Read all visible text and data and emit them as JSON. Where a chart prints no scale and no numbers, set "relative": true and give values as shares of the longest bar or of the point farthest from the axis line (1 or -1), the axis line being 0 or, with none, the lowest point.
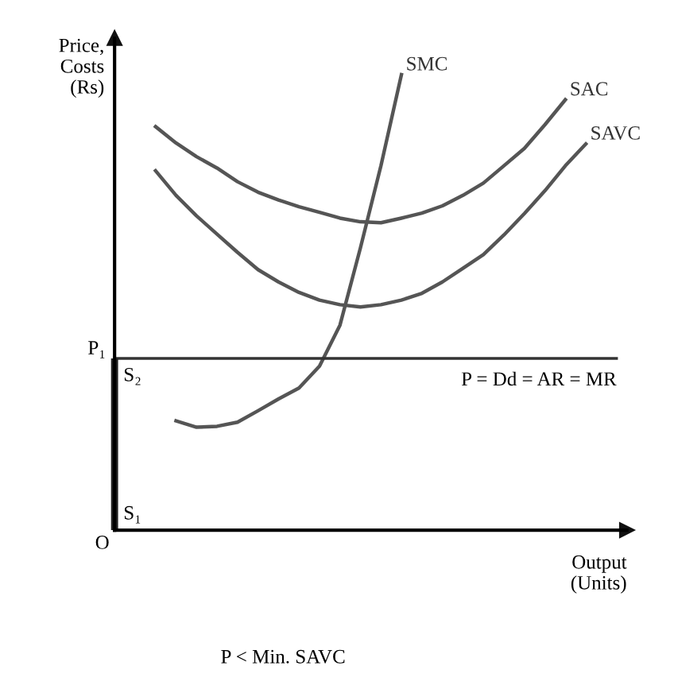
{
  "chart_data": {
    "type": "line",
    "relative": true,
    "tick_labels": false,
    "marker": "none",
    "ylabel": "Price,\nCosts\n(Rs)",
    "xlabel": "Output\n(Units)",
    "categories": [
      null,
      null,
      null,
      null,
      null,
      null,
      null,
      null,
      null,
      null,
      null,
      null,
      null,
      null,
      null,
      null,
      null,
      null,
      null,
      null,
      null,
      null,
      null,
      null,
      null
    ],
    "series": [
      {
        "name": "SAC",
        "color": "#555555",
        "values": [
          null,
          null,
          0.886,
          0.85,
          0.82,
          0.795,
          0.765,
          0.742,
          0.725,
          0.71,
          0.698,
          0.685,
          0.677,
          0.675,
          0.685,
          0.696,
          0.712,
          0.735,
          0.762,
          0.8,
          0.838,
          0.89,
          0.945,
          null,
          null
        ]
      },
      {
        "name": "SAVC",
        "color": "#555555",
        "values": [
          null,
          null,
          0.789,
          0.735,
          0.69,
          0.65,
          0.61,
          0.572,
          0.545,
          0.522,
          0.505,
          0.495,
          0.49,
          0.495,
          0.505,
          0.52,
          0.545,
          0.575,
          0.605,
          0.648,
          0.695,
          0.745,
          0.8,
          0.848,
          null
        ]
      },
      {
        "name": "SMC",
        "color": "#555555",
        "values": [
          null,
          null,
          null,
          0.24,
          0.226,
          0.228,
          0.237,
          0.262,
          0.288,
          0.312,
          0.36,
          0.45,
          0.62,
          0.8,
          1.0,
          null,
          null,
          null,
          null,
          null,
          null,
          null,
          null,
          null,
          null
        ]
      }
    ],
    "ref_lines": [
      {
        "axis": "y",
        "value": 0.377,
        "label": "P = Dd = AR = MR",
        "color": "#333333"
      }
    ],
    "annotations": [
      "P₁",
      {
        "text": "S₂",
        "y": 0.377
      },
      "S₁",
      "O",
      "P < Min. SAVC"
    ]
  }
}
